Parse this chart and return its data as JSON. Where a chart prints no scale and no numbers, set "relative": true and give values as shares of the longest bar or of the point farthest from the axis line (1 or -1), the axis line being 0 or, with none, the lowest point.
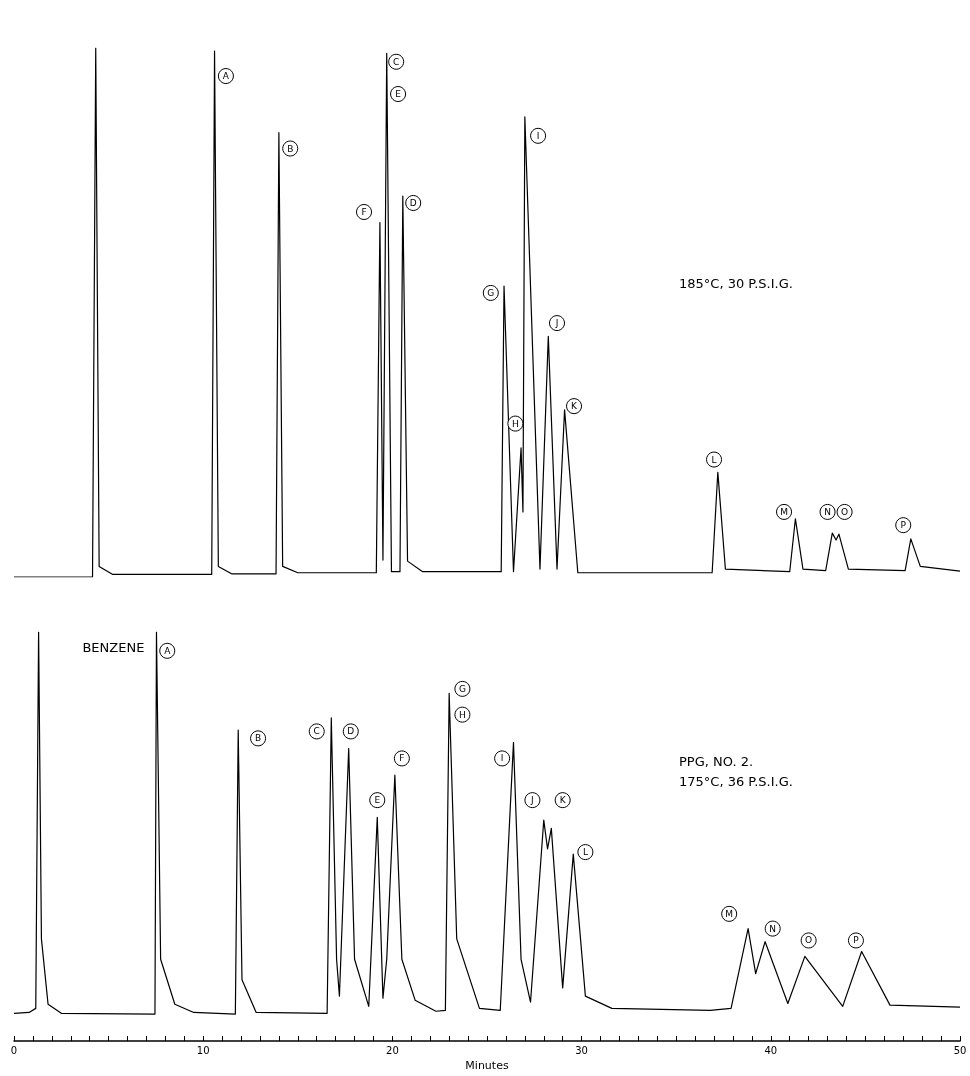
{
  "chart_data": [
    {
      "type": "line",
      "relative": true,
      "xlim": [
        0,
        50
      ],
      "tick_labels": false,
      "grid": false,
      "marker": "none",
      "line_style": "solid",
      "annotations": [
        "185°C, 30 P.S.I.G.",
        {
          "text": "A",
          "x": 11.2,
          "y": 0.947
        },
        {
          "text": "B",
          "x": 14.6,
          "y": 0.81
        },
        {
          "text": "C",
          "x": 20.2,
          "y": 0.974
        },
        {
          "text": "E",
          "x": 20.3,
          "y": 0.913
        },
        {
          "text": "F",
          "x": 18.5,
          "y": 0.69
        },
        {
          "text": "D",
          "x": 21.1,
          "y": 0.707
        },
        {
          "text": "G",
          "x": 25.2,
          "y": 0.537
        },
        {
          "text": "H",
          "x": 26.5,
          "y": 0.29
        },
        {
          "text": "I",
          "x": 27.7,
          "y": 0.834
        },
        {
          "text": "J",
          "x": 28.7,
          "y": 0.48
        },
        {
          "text": "K",
          "x": 29.6,
          "y": 0.323
        },
        {
          "text": "L",
          "x": 37.0,
          "y": 0.222
        },
        {
          "text": "M",
          "x": 40.7,
          "y": 0.123
        },
        {
          "text": "N",
          "x": 43.0,
          "y": 0.123
        },
        {
          "text": "O",
          "x": 43.9,
          "y": 0.123
        },
        {
          "text": "P",
          "x": 47.0,
          "y": 0.098
        }
      ],
      "series": [
        {
          "color": "#000000",
          "x": [
            0,
            4.15,
            4.32,
            4.5,
            5.2,
            10.45,
            10.6,
            10.8,
            11.5,
            13.85,
            14.0,
            14.2,
            15,
            19.15,
            19.34,
            19.5,
            19.7,
            19.95,
            20.4,
            20.55,
            20.8,
            21.6,
            25.75,
            25.9,
            26.4,
            26.8,
            26.9,
            27.0,
            27.8,
            28.24,
            28.7,
            29.1,
            29.8,
            36.9,
            37.2,
            37.6,
            41.0,
            41.3,
            41.7,
            42.9,
            43.25,
            43.45,
            43.6,
            44.1,
            47.1,
            47.4,
            47.9,
            50
          ],
          "values": [
            0,
            0,
            1.0,
            0.02,
            0.005,
            0.005,
            0.994,
            0.02,
            0.006,
            0.006,
            0.84,
            0.02,
            0.008,
            0.008,
            0.67,
            0.032,
            0.99,
            0.01,
            0.01,
            0.72,
            0.03,
            0.01,
            0.01,
            0.55,
            0.01,
            0.244,
            0.123,
            0.87,
            0.015,
            0.455,
            0.015,
            0.316,
            0.008,
            0.008,
            0.198,
            0.015,
            0.01,
            0.11,
            0.015,
            0.012,
            0.083,
            0.07,
            0.081,
            0.015,
            0.012,
            0.072,
            0.02,
            0.011
          ]
        }
      ]
    },
    {
      "type": "line",
      "relative": true,
      "xlim": [
        0,
        50
      ],
      "xlabel": "Minutes",
      "grid": false,
      "marker": "none",
      "line_style": "solid",
      "xticks": [
        0,
        {
          "value": 1,
          "label": null
        },
        {
          "value": 2,
          "label": null
        },
        {
          "value": 3,
          "label": null
        },
        {
          "value": 4,
          "label": null
        },
        {
          "value": 5,
          "label": null
        },
        {
          "value": 6,
          "label": null
        },
        {
          "value": 7,
          "label": null
        },
        {
          "value": 8,
          "label": null
        },
        {
          "value": 9,
          "label": null
        },
        10,
        {
          "value": 11,
          "label": null
        },
        {
          "value": 12,
          "label": null
        },
        {
          "value": 13,
          "label": null
        },
        {
          "value": 14,
          "label": null
        },
        {
          "value": 15,
          "label": null
        },
        {
          "value": 16,
          "label": null
        },
        {
          "value": 17,
          "label": null
        },
        {
          "value": 18,
          "label": null
        },
        {
          "value": 19,
          "label": null
        },
        20,
        {
          "value": 21,
          "label": null
        },
        {
          "value": 22,
          "label": null
        },
        {
          "value": 23,
          "label": null
        },
        {
          "value": 24,
          "label": null
        },
        {
          "value": 25,
          "label": null
        },
        {
          "value": 26,
          "label": null
        },
        {
          "value": 27,
          "label": null
        },
        {
          "value": 28,
          "label": null
        },
        {
          "value": 29,
          "label": null
        },
        30,
        {
          "value": 31,
          "label": null
        },
        {
          "value": 32,
          "label": null
        },
        {
          "value": 33,
          "label": null
        },
        {
          "value": 34,
          "label": null
        },
        {
          "value": 35,
          "label": null
        },
        {
          "value": 36,
          "label": null
        },
        {
          "value": 37,
          "label": null
        },
        {
          "value": 38,
          "label": null
        },
        {
          "value": 39,
          "label": null
        },
        40,
        {
          "value": 41,
          "label": null
        },
        {
          "value": 42,
          "label": null
        },
        {
          "value": 43,
          "label": null
        },
        {
          "value": 44,
          "label": null
        },
        {
          "value": 45,
          "label": null
        },
        {
          "value": 46,
          "label": null
        },
        {
          "value": 47,
          "label": null
        },
        {
          "value": 48,
          "label": null
        },
        {
          "value": 49,
          "label": null
        },
        50
      ],
      "annotations": [
        "PPG, NO. 2.",
        "175°C, 36 P.S.I.G.",
        "BENZENE",
        {
          "text": "A",
          "x": 8.1,
          "y": 0.954
        },
        {
          "text": "B",
          "x": 12.9,
          "y": 0.74
        },
        {
          "text": "C",
          "x": 16.0,
          "y": 0.757
        },
        {
          "text": "D",
          "x": 17.8,
          "y": 0.757
        },
        {
          "text": "E",
          "x": 19.2,
          "y": 0.589
        },
        {
          "text": "F",
          "x": 20.5,
          "y": 0.691
        },
        {
          "text": "G",
          "x": 23.7,
          "y": 0.861
        },
        {
          "text": "H",
          "x": 23.7,
          "y": 0.798
        },
        {
          "text": "I",
          "x": 25.8,
          "y": 0.691
        },
        {
          "text": "J",
          "x": 27.4,
          "y": 0.589
        },
        {
          "text": "K",
          "x": 29.0,
          "y": 0.589
        },
        {
          "text": "L",
          "x": 30.2,
          "y": 0.462
        },
        {
          "text": "M",
          "x": 37.8,
          "y": 0.311
        },
        {
          "text": "N",
          "x": 40.1,
          "y": 0.275
        },
        {
          "text": "O",
          "x": 42.0,
          "y": 0.246
        },
        {
          "text": "P",
          "x": 44.5,
          "y": 0.246
        }
      ],
      "series": [
        {
          "color": "#000000",
          "x": [
            0,
            0.8,
            1.15,
            1.3,
            1.45,
            1.8,
            2.5,
            7.45,
            7.53,
            7.75,
            8.5,
            9.5,
            11.7,
            11.85,
            12.05,
            12.8,
            16.55,
            16.77,
            17.05,
            17.2,
            17.69,
            18.0,
            18.75,
            19.2,
            19.5,
            19.7,
            20.13,
            20.5,
            21.2,
            22.3,
            22.8,
            23.0,
            23.4,
            24.6,
            25.7,
            26.4,
            26.8,
            27.3,
            28.0,
            28.2,
            28.4,
            29.0,
            29.56,
            30.2,
            31.6,
            36.8,
            37.9,
            38.8,
            39.2,
            39.7,
            40.9,
            41.8,
            43.8,
            44.8,
            46.3,
            50
          ],
          "values": [
            0.068,
            0.07,
            0.08,
            1.0,
            0.25,
            0.09,
            0.068,
            0.066,
            1.0,
            0.2,
            0.09,
            0.07,
            0.066,
            0.76,
            0.15,
            0.07,
            0.068,
            0.79,
            0.2,
            0.11,
            0.715,
            0.2,
            0.085,
            0.547,
            0.105,
            0.2,
            0.65,
            0.2,
            0.1,
            0.073,
            0.075,
            0.85,
            0.25,
            0.08,
            0.075,
            0.73,
            0.2,
            0.095,
            0.54,
            0.47,
            0.52,
            0.13,
            0.457,
            0.11,
            0.08,
            0.075,
            0.08,
            0.275,
            0.165,
            0.243,
            0.092,
            0.207,
            0.085,
            0.219,
            0.088,
            0.083
          ]
        }
      ]
    }
  ]
}
